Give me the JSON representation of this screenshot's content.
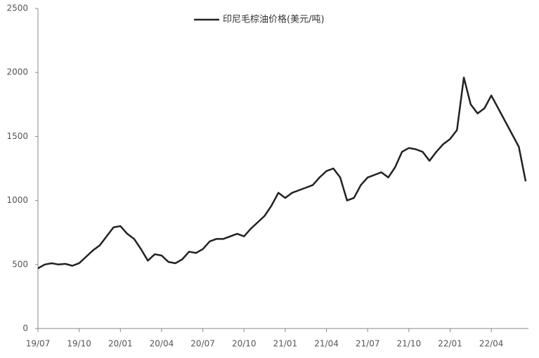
{
  "chart_data": {
    "type": "line",
    "categories": [
      "19/07",
      null,
      null,
      null,
      null,
      null,
      "19/10",
      null,
      null,
      null,
      null,
      null,
      "20/01",
      null,
      null,
      null,
      null,
      null,
      "20/04",
      null,
      null,
      null,
      null,
      null,
      "20/07",
      null,
      null,
      null,
      null,
      null,
      "20/10",
      null,
      null,
      null,
      null,
      null,
      "21/01",
      null,
      null,
      null,
      null,
      null,
      "21/04",
      null,
      null,
      null,
      null,
      null,
      "21/07",
      null,
      null,
      null,
      null,
      null,
      "21/10",
      null,
      null,
      null,
      null,
      null,
      "22/01",
      null,
      null,
      null,
      null,
      null,
      "22/04",
      null,
      null,
      null,
      null,
      null
    ],
    "series": [
      {
        "name": "印尼毛棕油价格(美元/吨)",
        "color": "#222222",
        "values": [
          470,
          500,
          510,
          500,
          505,
          490,
          510,
          560,
          610,
          650,
          720,
          790,
          800,
          740,
          700,
          620,
          530,
          580,
          570,
          520,
          510,
          540,
          600,
          590,
          620,
          680,
          700,
          700,
          720,
          740,
          720,
          780,
          830,
          880,
          960,
          1060,
          1020,
          1060,
          1080,
          1100,
          1120,
          1180,
          1230,
          1250,
          1180,
          1000,
          1020,
          1120,
          1180,
          1200,
          1220,
          1180,
          1260,
          1380,
          1410,
          1400,
          1380,
          1310,
          1380,
          1440,
          1480,
          1550,
          1960,
          1750,
          1680,
          1720,
          1820,
          1720,
          1620,
          1520,
          1420,
          1150
        ]
      }
    ],
    "ylim": [
      0,
      2500
    ],
    "yticks": [
      0,
      500,
      1000,
      1500,
      2000,
      2500
    ],
    "grid": false
  }
}
